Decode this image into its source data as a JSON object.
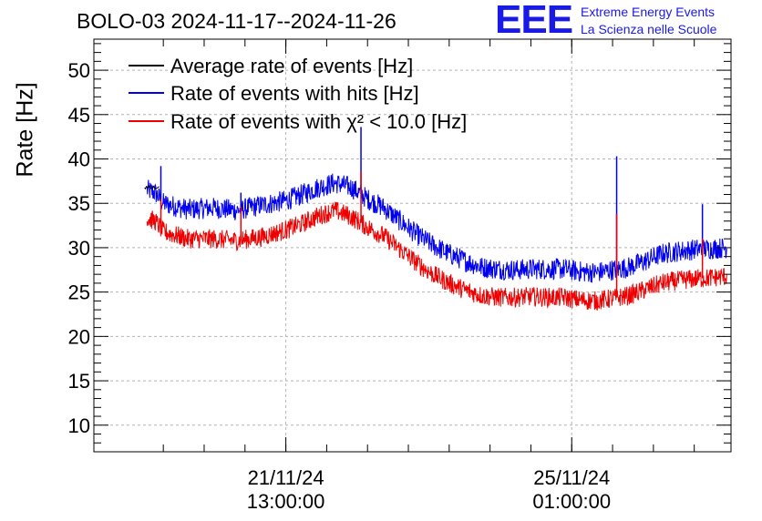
{
  "title": "BOLO-03 2024-11-17--2024-11-26",
  "logo": {
    "mark": "EEE",
    "line1": "Extreme Energy Events",
    "line2": "La Scienza nelle Scuole"
  },
  "colors": {
    "average": "#000000",
    "hits": "#0000ee",
    "chi2": "#ee0000",
    "grid": "#b4b4b4"
  },
  "chart_data": {
    "type": "line",
    "title": "BOLO-03 2024-11-17--2024-11-26",
    "ylabel": "Rate [Hz]",
    "xlabel": "",
    "ylim": [
      7,
      53.5
    ],
    "yticks": [
      10,
      15,
      20,
      25,
      30,
      35,
      40,
      45,
      50
    ],
    "xlim_days": [
      -2.35,
      5.45
    ],
    "xticks": [
      {
        "date": "21/11/24",
        "time": "13:00:00",
        "day": 0
      },
      {
        "date": "25/11/24",
        "time": "01:00:00",
        "day": 3.5
      }
    ],
    "grid": true,
    "legend_position": "top-left",
    "legend": [
      {
        "name": "Average rate of events [Hz]",
        "key": "average"
      },
      {
        "name": "Rate of events with hits [Hz]",
        "key": "hits"
      },
      {
        "name": "Rate of events with χ² < 10.0 [Hz]",
        "key": "chi2"
      }
    ],
    "series": [
      {
        "name": "Rate of events with hits [Hz]",
        "key": "hits",
        "x_days": [
          -1.7,
          -1.6,
          -1.5,
          -1.2,
          -0.9,
          -0.6,
          -0.3,
          0.0,
          0.2,
          0.4,
          0.6,
          0.8,
          1.0,
          1.2,
          1.4,
          1.6,
          1.8,
          2.0,
          2.2,
          2.4,
          2.6,
          2.8,
          3.0,
          3.2,
          3.4,
          3.6,
          3.8,
          4.0,
          4.2,
          4.4,
          4.6,
          4.8,
          5.0,
          5.2,
          5.4
        ],
        "values": [
          36.5,
          36.2,
          35.0,
          34.3,
          34.5,
          34.2,
          34.8,
          35.3,
          36.0,
          36.8,
          37.3,
          36.8,
          35.5,
          34.5,
          33.0,
          31.5,
          30.3,
          29.3,
          28.5,
          27.8,
          27.6,
          27.5,
          27.6,
          27.6,
          27.6,
          27.3,
          27.2,
          27.5,
          27.8,
          28.5,
          29.3,
          29.6,
          29.8,
          29.9,
          30.0
        ],
        "noise": 1.2,
        "spikes": [
          {
            "x_days": -1.53,
            "value": 39.2
          },
          {
            "x_days": -0.55,
            "value": 36.2
          },
          {
            "x_days": 0.92,
            "value": 43.6
          },
          {
            "x_days": 4.05,
            "value": 40.3
          },
          {
            "x_days": 5.1,
            "value": 34.9
          }
        ]
      },
      {
        "name": "Rate of events with χ² < 10.0 [Hz]",
        "key": "chi2",
        "x_days": [
          -1.7,
          -1.6,
          -1.5,
          -1.2,
          -0.9,
          -0.6,
          -0.3,
          0.0,
          0.2,
          0.4,
          0.6,
          0.8,
          1.0,
          1.2,
          1.4,
          1.6,
          1.8,
          2.0,
          2.2,
          2.4,
          2.6,
          2.8,
          3.0,
          3.2,
          3.4,
          3.6,
          3.8,
          4.0,
          4.2,
          4.4,
          4.6,
          4.8,
          5.0,
          5.2,
          5.4
        ],
        "values": [
          33.3,
          33.0,
          31.8,
          31.0,
          31.0,
          30.8,
          31.2,
          32.0,
          32.7,
          33.6,
          34.2,
          33.5,
          32.3,
          31.3,
          29.8,
          28.3,
          27.0,
          26.0,
          25.2,
          24.6,
          24.4,
          24.4,
          24.5,
          24.4,
          24.4,
          24.1,
          24.0,
          24.3,
          24.6,
          25.3,
          26.0,
          26.3,
          26.5,
          26.6,
          26.8
        ],
        "noise": 1.1,
        "spikes": [
          {
            "x_days": -1.53,
            "value": 35.5
          },
          {
            "x_days": -0.55,
            "value": 34.6
          },
          {
            "x_days": 0.92,
            "value": 38.6
          },
          {
            "x_days": 4.05,
            "value": 33.8
          },
          {
            "x_days": 5.1,
            "value": 31.0
          }
        ]
      },
      {
        "name": "Average rate of events [Hz]",
        "key": "average",
        "x_days": [
          -1.73,
          -1.55
        ],
        "values": [
          36.8,
          36.7
        ],
        "noise": 0.2,
        "spikes": []
      }
    ]
  }
}
